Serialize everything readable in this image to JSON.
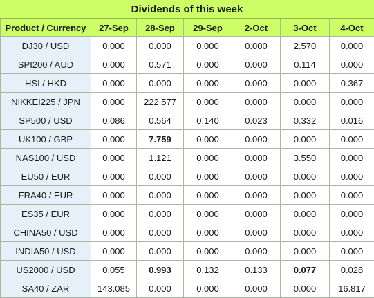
{
  "title": "Dividends of this week",
  "headers": [
    "Product / Currency",
    "27-Sep",
    "28-Sep",
    "29-Sep",
    "2-Oct",
    "3-Oct",
    "4-Oct"
  ],
  "rows": [
    {
      "product": "DJ30 / USD",
      "values": [
        "0.000",
        "0.000",
        "0.000",
        "0.000",
        "2.570",
        "0.000"
      ],
      "bold": []
    },
    {
      "product": "SPI200 / AUD",
      "values": [
        "0.000",
        "0.571",
        "0.000",
        "0.000",
        "0.114",
        "0.000"
      ],
      "bold": []
    },
    {
      "product": "HSI / HKD",
      "values": [
        "0.000",
        "0.000",
        "0.000",
        "0.000",
        "0.000",
        "0.367"
      ],
      "bold": []
    },
    {
      "product": "NIKKEI225 / JPN",
      "values": [
        "0.000",
        "222.577",
        "0.000",
        "0.000",
        "0.000",
        "0.000"
      ],
      "bold": []
    },
    {
      "product": "SP500 / USD",
      "values": [
        "0.086",
        "0.564",
        "0.140",
        "0.023",
        "0.332",
        "0.016"
      ],
      "bold": []
    },
    {
      "product": "UK100 / GBP",
      "values": [
        "0.000",
        "7.759",
        "0.000",
        "0.000",
        "0.000",
        "0.000"
      ],
      "bold": [
        1
      ]
    },
    {
      "product": "NAS100 / USD",
      "values": [
        "0.000",
        "1.121",
        "0.000",
        "0.000",
        "3.550",
        "0.000"
      ],
      "bold": []
    },
    {
      "product": "EU50 / EUR",
      "values": [
        "0.000",
        "0.000",
        "0.000",
        "0.000",
        "0.000",
        "0.000"
      ],
      "bold": []
    },
    {
      "product": "FRA40 / EUR",
      "values": [
        "0.000",
        "0.000",
        "0.000",
        "0.000",
        "0.000",
        "0.000"
      ],
      "bold": []
    },
    {
      "product": "ES35 / EUR",
      "values": [
        "0.000",
        "0.000",
        "0.000",
        "0.000",
        "0.000",
        "0.000"
      ],
      "bold": []
    },
    {
      "product": "CHINA50 / USD",
      "values": [
        "0.000",
        "0.000",
        "0.000",
        "0.000",
        "0.000",
        "0.000"
      ],
      "bold": []
    },
    {
      "product": "INDIA50 / USD",
      "values": [
        "0.000",
        "0.000",
        "0.000",
        "0.000",
        "0.000",
        "0.000"
      ],
      "bold": []
    },
    {
      "product": "US2000 / USD",
      "values": [
        "0.055",
        "0.993",
        "0.132",
        "0.133",
        "0.077",
        "0.028"
      ],
      "bold": [
        1,
        4
      ]
    },
    {
      "product": "SA40 / ZAR",
      "values": [
        "143.085",
        "0.000",
        "0.000",
        "0.000",
        "0.000",
        "16.817"
      ],
      "bold": []
    }
  ]
}
